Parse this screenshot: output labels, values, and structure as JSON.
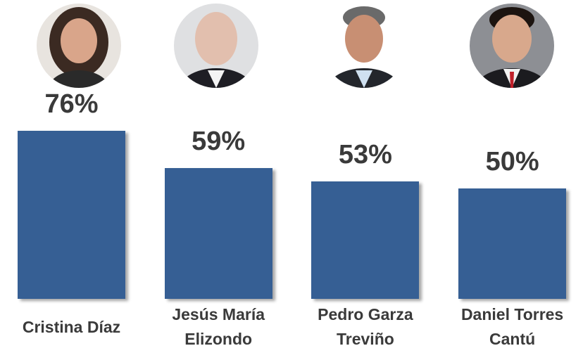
{
  "chart_data": {
    "type": "bar",
    "categories": [
      "Cristina Díaz",
      "Jesús María Elizondo",
      "Pedro Garza Treviño",
      "Daniel Torres Cantú"
    ],
    "values": [
      76,
      59,
      53,
      50
    ],
    "value_labels": [
      "76%",
      "59%",
      "53%",
      "50%"
    ],
    "color": "#365f94"
  }
}
